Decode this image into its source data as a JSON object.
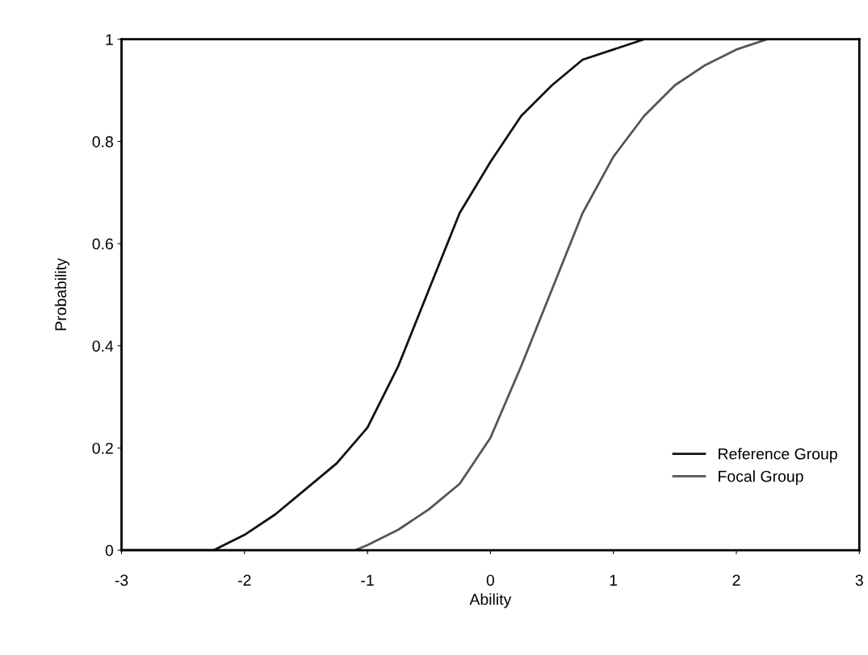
{
  "chart_data": {
    "type": "line",
    "xlabel": "Ability",
    "ylabel": "Probability",
    "xlim": [
      -3,
      3
    ],
    "ylim": [
      0,
      1
    ],
    "xticks": [
      -3,
      -2,
      -1,
      0,
      1,
      2,
      3
    ],
    "yticks": [
      0,
      0.2,
      0.4,
      0.6,
      0.8,
      1
    ],
    "grid": false,
    "legend": "bottom right",
    "marker": "none",
    "line_style": "solid",
    "series": [
      {
        "name": "Reference Group",
        "color": "#111111",
        "x": [
          -3,
          -2.25,
          -2,
          -1.75,
          -1.5,
          -1.25,
          -1,
          -0.75,
          -0.5,
          -0.25,
          0,
          0.25,
          0.5,
          0.75,
          1,
          1.25,
          1.5,
          2,
          3
        ],
        "values": [
          0,
          0,
          0.03,
          0.07,
          0.12,
          0.17,
          0.24,
          0.36,
          0.51,
          0.66,
          0.76,
          0.85,
          0.91,
          0.96,
          0.98,
          1,
          1,
          1,
          1
        ]
      },
      {
        "name": "Focal Group",
        "color": "#555555",
        "x": [
          -3,
          -1.5,
          -1.1,
          -1,
          -0.75,
          -0.5,
          -0.25,
          0,
          0.25,
          0.5,
          0.75,
          1,
          1.25,
          1.5,
          1.75,
          2,
          2.25,
          2.5,
          3
        ],
        "values": [
          0,
          0,
          0,
          0.01,
          0.04,
          0.08,
          0.13,
          0.22,
          0.36,
          0.51,
          0.66,
          0.77,
          0.85,
          0.91,
          0.95,
          0.98,
          1,
          1,
          1
        ]
      }
    ]
  }
}
